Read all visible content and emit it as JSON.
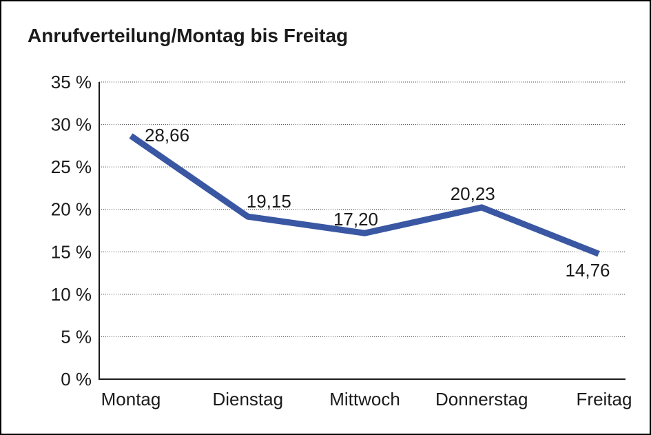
{
  "page": {
    "background_color": "#ffffff",
    "frame_border_color": "#000000"
  },
  "chart_data": {
    "type": "line",
    "title": "Anrufverteilung/Montag bis Freitag",
    "categories": [
      "Montag",
      "Dienstag",
      "Mittwoch",
      "Donnerstag",
      "Freitag"
    ],
    "series": [
      {
        "name": "Anrufverteilung",
        "values": [
          28.66,
          19.15,
          17.2,
          20.23,
          14.76
        ]
      }
    ],
    "value_labels": [
      "28,66",
      "19,15",
      "17,20",
      "20,23",
      "14,76"
    ],
    "value_label_placements": [
      "right",
      "above-right",
      "above",
      "above",
      "below"
    ],
    "y_axis": {
      "min": 0,
      "max": 35,
      "step": 5,
      "tick_labels": [
        "0 %",
        "5 %",
        "10 %",
        "15 %",
        "20 %",
        "25 %",
        "30 %",
        "35 %"
      ],
      "unit": "%"
    },
    "x_axis_label": "",
    "y_axis_label": "",
    "grid": "horizontal-dotted",
    "legend": "none",
    "colors": {
      "line": "#3A57A3",
      "text": "#1a1a1a",
      "gridline": "#404040",
      "axis": "#1a1a1a"
    }
  }
}
